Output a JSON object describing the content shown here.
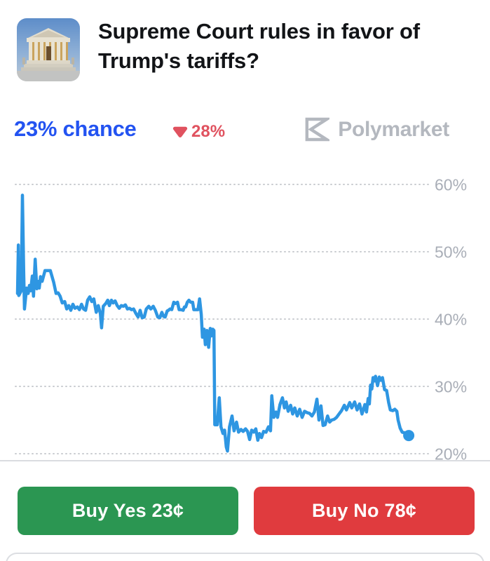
{
  "header": {
    "title": "Supreme Court rules in favor of Trump's tariffs?",
    "icon_name": "supreme-court-photo-icon"
  },
  "price_row": {
    "chance_label": "23% chance",
    "change": {
      "icon_name": "triangle-down-icon",
      "value": "28%",
      "direction": "down",
      "color": "#e0525f"
    },
    "brand": {
      "icon_name": "polymarket-logo-icon",
      "name": "Polymarket",
      "color": "#b4b8bf"
    }
  },
  "chart_data": {
    "type": "line",
    "series_name": "Yes price",
    "unit": "%",
    "title": "",
    "xlabel": "",
    "ylabel": "",
    "grid": "dotted-horizontal",
    "legend": "none",
    "y_ticks": [
      "60%",
      "50%",
      "40%",
      "30%",
      "20%"
    ],
    "y_tick_values": [
      60,
      50,
      40,
      30,
      20
    ],
    "ylim": [
      18.9,
      62.5
    ],
    "last_value": 23,
    "line_color": "#2e96e2",
    "grid_color": "#c9ccd0",
    "label_color": "#a9aeb7",
    "end_dot": true,
    "points": [
      [
        0.0,
        43.8
      ],
      [
        0.002,
        51.0
      ],
      [
        0.003,
        43.5
      ],
      [
        0.009,
        44.2
      ],
      [
        0.012,
        58.4
      ],
      [
        0.015,
        47.0
      ],
      [
        0.017,
        41.5
      ],
      [
        0.022,
        44.6
      ],
      [
        0.026,
        43.8
      ],
      [
        0.029,
        45.0
      ],
      [
        0.032,
        44.2
      ],
      [
        0.036,
        46.4
      ],
      [
        0.039,
        43.4
      ],
      [
        0.043,
        48.9
      ],
      [
        0.047,
        44.5
      ],
      [
        0.05,
        45.6
      ],
      [
        0.053,
        44.6
      ],
      [
        0.056,
        46.3
      ],
      [
        0.06,
        45.6
      ],
      [
        0.067,
        47.2
      ],
      [
        0.074,
        47.2
      ],
      [
        0.08,
        47.2
      ],
      [
        0.088,
        45.5
      ],
      [
        0.094,
        43.8
      ],
      [
        0.099,
        43.9
      ],
      [
        0.104,
        43.4
      ],
      [
        0.109,
        42.4
      ],
      [
        0.115,
        42.6
      ],
      [
        0.12,
        41.5
      ],
      [
        0.125,
        42.0
      ],
      [
        0.13,
        41.3
      ],
      [
        0.135,
        42.2
      ],
      [
        0.14,
        41.6
      ],
      [
        0.146,
        41.8
      ],
      [
        0.151,
        41.4
      ],
      [
        0.156,
        42.2
      ],
      [
        0.161,
        41.5
      ],
      [
        0.166,
        41.3
      ],
      [
        0.171,
        42.8
      ],
      [
        0.176,
        43.3
      ],
      [
        0.181,
        42.6
      ],
      [
        0.186,
        43.0
      ],
      [
        0.192,
        41.0
      ],
      [
        0.197,
        42.0
      ],
      [
        0.202,
        40.8
      ],
      [
        0.205,
        38.7
      ],
      [
        0.209,
        41.9
      ],
      [
        0.215,
        42.3
      ],
      [
        0.22,
        42.8
      ],
      [
        0.224,
        42.0
      ],
      [
        0.229,
        42.8
      ],
      [
        0.233,
        42.4
      ],
      [
        0.238,
        42.7
      ],
      [
        0.243,
        42.0
      ],
      [
        0.248,
        41.6
      ],
      [
        0.253,
        42.0
      ],
      [
        0.258,
        41.9
      ],
      [
        0.263,
        42.1
      ],
      [
        0.268,
        41.5
      ],
      [
        0.273,
        41.6
      ],
      [
        0.278,
        41.4
      ],
      [
        0.283,
        41.5
      ],
      [
        0.288,
        40.9
      ],
      [
        0.294,
        40.3
      ],
      [
        0.299,
        41.3
      ],
      [
        0.304,
        40.2
      ],
      [
        0.309,
        40.3
      ],
      [
        0.314,
        41.5
      ],
      [
        0.32,
        41.9
      ],
      [
        0.325,
        41.5
      ],
      [
        0.331,
        41.9
      ],
      [
        0.336,
        41.3
      ],
      [
        0.342,
        40.3
      ],
      [
        0.347,
        40.2
      ],
      [
        0.352,
        41.0
      ],
      [
        0.356,
        40.4
      ],
      [
        0.36,
        40.3
      ],
      [
        0.365,
        41.2
      ],
      [
        0.368,
        41.3
      ],
      [
        0.372,
        41.5
      ],
      [
        0.376,
        41.4
      ],
      [
        0.381,
        42.5
      ],
      [
        0.385,
        42.3
      ],
      [
        0.39,
        42.5
      ],
      [
        0.394,
        41.4
      ],
      [
        0.399,
        41.4
      ],
      [
        0.404,
        41.3
      ],
      [
        0.407,
        41.8
      ],
      [
        0.41,
        41.8
      ],
      [
        0.414,
        42.5
      ],
      [
        0.418,
        42.8
      ],
      [
        0.422,
        42.5
      ],
      [
        0.427,
        42.5
      ],
      [
        0.43,
        41.4
      ],
      [
        0.436,
        41.4
      ],
      [
        0.44,
        41.4
      ],
      [
        0.444,
        43.0
      ],
      [
        0.448,
        40.7
      ],
      [
        0.451,
        37.3
      ],
      [
        0.455,
        38.5
      ],
      [
        0.458,
        36.2
      ],
      [
        0.462,
        38.3
      ],
      [
        0.466,
        35.8
      ],
      [
        0.47,
        38.6
      ],
      [
        0.473,
        37.5
      ],
      [
        0.476,
        38.5
      ],
      [
        0.479,
        38.3
      ],
      [
        0.481,
        24.3
      ],
      [
        0.487,
        24.3
      ],
      [
        0.492,
        28.3
      ],
      [
        0.496,
        24.0
      ],
      [
        0.501,
        23.0
      ],
      [
        0.505,
        23.5
      ],
      [
        0.509,
        21.0
      ],
      [
        0.512,
        20.4
      ],
      [
        0.517,
        24.0
      ],
      [
        0.523,
        25.6
      ],
      [
        0.528,
        23.4
      ],
      [
        0.534,
        24.7
      ],
      [
        0.539,
        23.2
      ],
      [
        0.545,
        23.6
      ],
      [
        0.55,
        23.3
      ],
      [
        0.556,
        23.7
      ],
      [
        0.561,
        23.3
      ],
      [
        0.566,
        22.1
      ],
      [
        0.571,
        23.5
      ],
      [
        0.576,
        23.2
      ],
      [
        0.581,
        23.7
      ],
      [
        0.586,
        22.0
      ],
      [
        0.59,
        23.0
      ],
      [
        0.595,
        22.4
      ],
      [
        0.6,
        23.3
      ],
      [
        0.606,
        23.2
      ],
      [
        0.612,
        24.0
      ],
      [
        0.617,
        23.4
      ],
      [
        0.62,
        28.6
      ],
      [
        0.625,
        25.4
      ],
      [
        0.63,
        26.2
      ],
      [
        0.634,
        25.4
      ],
      [
        0.64,
        27.3
      ],
      [
        0.646,
        28.3
      ],
      [
        0.651,
        26.8
      ],
      [
        0.655,
        27.7
      ],
      [
        0.66,
        26.3
      ],
      [
        0.666,
        27.2
      ],
      [
        0.671,
        25.9
      ],
      [
        0.676,
        26.8
      ],
      [
        0.682,
        25.6
      ],
      [
        0.688,
        26.6
      ],
      [
        0.694,
        25.4
      ],
      [
        0.7,
        26.3
      ],
      [
        0.706,
        26.1
      ],
      [
        0.712,
        26.0
      ],
      [
        0.718,
        25.6
      ],
      [
        0.724,
        26.2
      ],
      [
        0.73,
        28.1
      ],
      [
        0.735,
        25.0
      ],
      [
        0.74,
        27.1
      ],
      [
        0.745,
        24.2
      ],
      [
        0.75,
        24.3
      ],
      [
        0.756,
        25.6
      ],
      [
        0.761,
        24.7
      ],
      [
        0.766,
        25.0
      ],
      [
        0.772,
        25.1
      ],
      [
        0.778,
        25.4
      ],
      [
        0.784,
        25.9
      ],
      [
        0.79,
        26.4
      ],
      [
        0.797,
        27.2
      ],
      [
        0.802,
        26.5
      ],
      [
        0.81,
        27.6
      ],
      [
        0.815,
        26.8
      ],
      [
        0.822,
        27.7
      ],
      [
        0.828,
        26.5
      ],
      [
        0.834,
        27.4
      ],
      [
        0.84,
        25.9
      ],
      [
        0.847,
        27.3
      ],
      [
        0.851,
        26.2
      ],
      [
        0.855,
        28.2
      ],
      [
        0.858,
        27.4
      ],
      [
        0.861,
        30.2
      ],
      [
        0.864,
        29.6
      ],
      [
        0.867,
        31.3
      ],
      [
        0.87,
        30.8
      ],
      [
        0.873,
        31.5
      ],
      [
        0.878,
        30.1
      ],
      [
        0.882,
        31.4
      ],
      [
        0.886,
        30.9
      ],
      [
        0.89,
        31.3
      ],
      [
        0.895,
        29.5
      ],
      [
        0.9,
        29.4
      ],
      [
        0.905,
        27.6
      ],
      [
        0.909,
        26.5
      ],
      [
        0.915,
        26.4
      ],
      [
        0.92,
        26.6
      ],
      [
        0.925,
        26.3
      ],
      [
        0.928,
        25.0
      ],
      [
        0.933,
        23.8
      ],
      [
        0.938,
        23.2
      ],
      [
        0.944,
        23.1
      ],
      [
        0.949,
        22.9
      ],
      [
        0.954,
        22.7
      ]
    ]
  },
  "footer": {
    "buy_yes_label": "Buy Yes 23¢",
    "buy_no_label": "Buy No 78¢",
    "yes_color": "#2b9652",
    "no_color": "#e03b3e"
  }
}
